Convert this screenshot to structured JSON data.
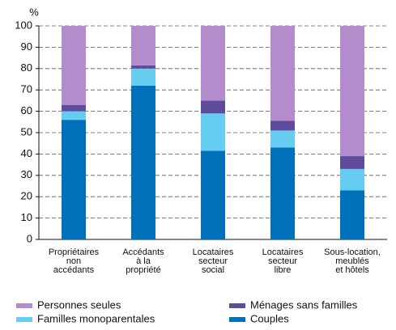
{
  "chart_data": {
    "type": "stacked_bar",
    "ylabel": "%",
    "categories": [
      [
        "Propriétaires",
        "non",
        "accédants"
      ],
      [
        "Accédants",
        "à la",
        "propriété"
      ],
      [
        "Locataires",
        "secteur",
        "social"
      ],
      [
        "Locataires",
        "secteur",
        "libre"
      ],
      [
        "Sous-location,",
        "meublés",
        "et hôtels"
      ]
    ],
    "series": [
      {
        "name": "Couples",
        "color": "#0070b8",
        "values": [
          56,
          72,
          41.5,
          43,
          23
        ]
      },
      {
        "name": "Familles monoparentales",
        "color": "#66ccf0",
        "values": [
          4,
          8,
          17.5,
          8,
          10
        ]
      },
      {
        "name": "Ménages sans familles",
        "color": "#5e4b9c",
        "values": [
          3,
          1.5,
          6,
          4.5,
          6
        ]
      },
      {
        "name": "Personnes seules",
        "color": "#b48ccc",
        "values": [
          37,
          18.5,
          35,
          44.5,
          61
        ]
      }
    ],
    "ylim": [
      0,
      100
    ],
    "yticks": [
      0,
      10,
      20,
      30,
      40,
      50,
      60,
      70,
      80,
      90,
      100
    ],
    "grid": true
  }
}
